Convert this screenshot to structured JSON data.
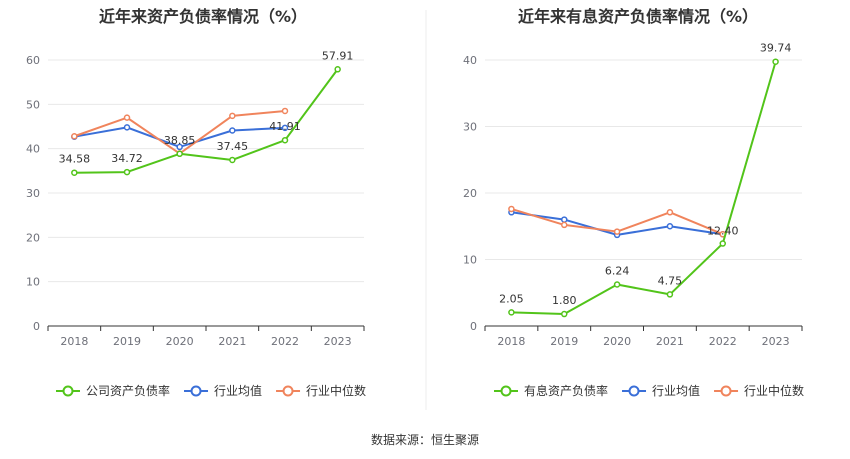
{
  "source_label": "数据来源：恒生聚源",
  "colors": {
    "company": "#52c41a",
    "avg": "#3a6fd8",
    "median": "#f0845c",
    "grid": "#e8e8e8",
    "axis": "#333333"
  },
  "chart_data": [
    {
      "type": "line",
      "title": "近年来资产负债率情况（%）",
      "categories": [
        "2018",
        "2019",
        "2020",
        "2021",
        "2022",
        "2023"
      ],
      "ylim": [
        0,
        60
      ],
      "yticks": [
        0,
        10,
        20,
        30,
        40,
        50,
        60
      ],
      "grid": true,
      "legend_position": "bottom",
      "series": [
        {
          "name": "公司资产负债率",
          "key": "company",
          "values": [
            34.58,
            34.72,
            38.85,
            37.45,
            41.91,
            57.91
          ],
          "labels": [
            "34.58",
            "34.72",
            "38.85",
            "37.45",
            "41.91",
            "57.91"
          ]
        },
        {
          "name": "行业均值",
          "key": "avg",
          "values": [
            42.7,
            44.8,
            40.4,
            44.1,
            44.7,
            null
          ]
        },
        {
          "name": "行业中位数",
          "key": "median",
          "values": [
            42.8,
            47.0,
            38.9,
            47.4,
            48.5,
            null
          ]
        }
      ]
    },
    {
      "type": "line",
      "title": "近年来有息资产负债率情况（%）",
      "categories": [
        "2018",
        "2019",
        "2020",
        "2021",
        "2022",
        "2023"
      ],
      "ylim": [
        0,
        40
      ],
      "yticks": [
        0,
        10,
        20,
        30,
        40
      ],
      "grid": true,
      "legend_position": "bottom",
      "series": [
        {
          "name": "有息资产负债率",
          "key": "company",
          "values": [
            2.05,
            1.8,
            6.24,
            4.75,
            12.4,
            39.74
          ],
          "labels": [
            "2.05",
            "1.80",
            "6.24",
            "4.75",
            "12.40",
            "39.74"
          ]
        },
        {
          "name": "行业均值",
          "key": "avg",
          "values": [
            17.1,
            16.0,
            13.7,
            15.0,
            13.8,
            null
          ]
        },
        {
          "name": "行业中位数",
          "key": "median",
          "values": [
            17.6,
            15.2,
            14.2,
            17.1,
            13.8,
            null
          ]
        }
      ]
    }
  ]
}
